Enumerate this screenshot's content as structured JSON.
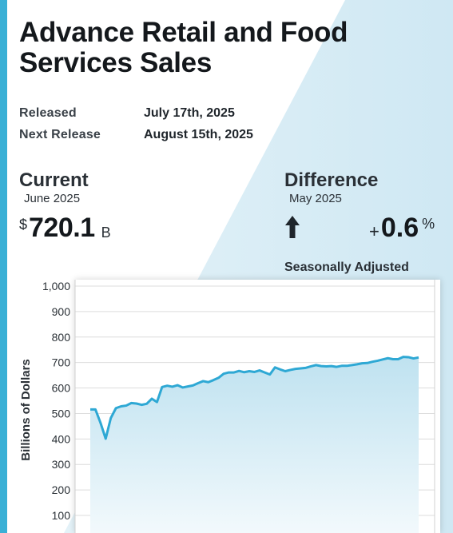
{
  "title": "Advance Retail and Food Services Sales",
  "released": {
    "label": "Released",
    "value": "July 17th, 2025"
  },
  "next_release": {
    "label": "Next Release",
    "value": "August 15th, 2025"
  },
  "current": {
    "heading": "Current",
    "period": "June 2025",
    "currency": "$",
    "value": "720.1",
    "unit": "B"
  },
  "difference": {
    "heading": "Difference",
    "period": "May 2025",
    "sign": "+",
    "value": "0.6",
    "unit": "%",
    "direction_icon": "arrow-up-icon"
  },
  "adjustment_note": "Seasonally Adjusted",
  "colors": {
    "accent": "#3ab0d6",
    "line": "#2ea8d4",
    "area_top": "#bfe2f0",
    "area_bottom": "#f2f9fc",
    "background_light": "#d7eef7"
  },
  "chart_data": {
    "type": "area",
    "ylabel": "Billions of Dollars",
    "xlabel": "",
    "ylim": [
      0,
      1000
    ],
    "yticks": [
      "1,000",
      "900",
      "800",
      "700",
      "600",
      "500",
      "400",
      "300",
      "200",
      "100"
    ],
    "ytick_values": [
      1000,
      900,
      800,
      700,
      600,
      500,
      400,
      300,
      200,
      100
    ],
    "grid": true,
    "legend": "none",
    "series": [
      {
        "values": [
          516,
          516,
          463,
          401,
          482,
          521,
          528,
          531,
          541,
          539,
          534,
          538,
          558,
          545,
          604,
          609,
          605,
          611,
          602,
          606,
          610,
          619,
          627,
          623,
          631,
          640,
          656,
          661,
          661,
          667,
          662,
          666,
          663,
          669,
          661,
          653,
          681,
          673,
          666,
          671,
          675,
          677,
          679,
          685,
          690,
          686,
          685,
          686,
          683,
          687,
          687,
          690,
          693,
          697,
          698,
          703,
          707,
          712,
          717,
          713,
          713,
          722,
          721,
          716,
          720
        ]
      }
    ]
  }
}
